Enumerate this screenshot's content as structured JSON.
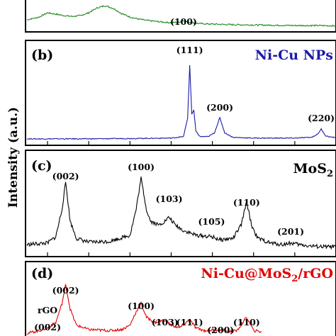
{
  "ylabel": "Intensity (a.u.)",
  "panels": [
    {
      "id": "a",
      "letter": "",
      "name": "",
      "name_color": "#228B22",
      "peak_labels": [
        {
          "text": "(100)",
          "x": 43
        }
      ]
    },
    {
      "id": "b",
      "letter": "(b)",
      "name": "Ni-Cu NPs",
      "name_color": "#1a1aa8",
      "peak_labels": [
        {
          "text": "(111)",
          "x": 44.5
        },
        {
          "text": "(200)",
          "x": 51.8
        },
        {
          "text": "(220)",
          "x": 76.4
        }
      ]
    },
    {
      "id": "c",
      "letter": "(c)",
      "name": "MoS",
      "name_sub": "2",
      "name_color": "#000000",
      "peak_labels": [
        {
          "text": "(002)",
          "x": 14.4
        },
        {
          "text": "(100)",
          "x": 32.7
        },
        {
          "text": "(103)",
          "x": 39.5
        },
        {
          "text": "(105)",
          "x": 49.8
        },
        {
          "text": "(110)",
          "x": 58.3
        },
        {
          "text": "(201)",
          "x": 69
        }
      ]
    },
    {
      "id": "d",
      "letter": "(d)",
      "name": "Ni-Cu@MoS",
      "name_sub": "2",
      "name_tail": "/rGO",
      "name_color": "#e00000",
      "peak_labels": [
        {
          "text": "(002)",
          "x": 14.4
        },
        {
          "text": "rGO",
          "x": 10
        },
        {
          "text": "(002)",
          "x": 10
        },
        {
          "text": "(100)",
          "x": 32.7
        },
        {
          "text": "(103)",
          "x": 38.5
        },
        {
          "text": "(111)",
          "x": 44.5
        },
        {
          "text": "(200)",
          "x": 52
        },
        {
          "text": "(110)",
          "x": 58.3
        }
      ]
    }
  ],
  "chart_data": {
    "type": "line",
    "ylabel": "Intensity (a.u.)",
    "xlim": [
      5,
      80
    ],
    "series": [
      {
        "panel": "a",
        "color": "#228B22",
        "x": [
          5,
          8,
          10,
          12,
          14,
          16,
          18,
          20,
          22,
          24,
          26,
          28,
          30,
          32,
          34,
          36,
          38,
          40,
          42,
          43,
          44,
          46,
          48,
          50,
          55,
          60,
          65,
          70,
          75,
          80
        ],
        "y": [
          0.3,
          0.4,
          0.55,
          0.5,
          0.45,
          0.42,
          0.45,
          0.55,
          0.72,
          0.8,
          0.7,
          0.52,
          0.4,
          0.33,
          0.28,
          0.25,
          0.22,
          0.2,
          0.22,
          0.28,
          0.22,
          0.18,
          0.16,
          0.15,
          0.13,
          0.12,
          0.11,
          0.1,
          0.1,
          0.09
        ]
      },
      {
        "panel": "b",
        "color": "#1a1aa8",
        "x": [
          5,
          20,
          40,
          43,
          44,
          44.5,
          45,
          45.5,
          46,
          47,
          49,
          50.5,
          51.8,
          53,
          55,
          60,
          70,
          74,
          75.5,
          76.4,
          77.5,
          79,
          80
        ],
        "y": [
          0.02,
          0.02,
          0.03,
          0.05,
          0.3,
          1.0,
          0.35,
          0.4,
          0.12,
          0.05,
          0.05,
          0.1,
          0.3,
          0.1,
          0.04,
          0.03,
          0.03,
          0.04,
          0.08,
          0.15,
          0.06,
          0.04,
          0.04
        ]
      },
      {
        "panel": "c",
        "color": "#000000",
        "x": [
          5,
          10,
          12,
          13.5,
          14.4,
          15.5,
          17,
          20,
          25,
          30,
          31.5,
          32.7,
          34,
          35,
          37,
          38.5,
          39.5,
          41,
          43,
          46,
          49.8,
          52,
          55,
          57,
          58.3,
          59.5,
          61,
          64,
          67,
          69,
          71,
          74,
          77,
          80
        ],
        "y": [
          0.1,
          0.12,
          0.2,
          0.55,
          0.9,
          0.4,
          0.18,
          0.13,
          0.14,
          0.22,
          0.55,
          0.95,
          0.55,
          0.4,
          0.35,
          0.4,
          0.45,
          0.35,
          0.28,
          0.22,
          0.2,
          0.16,
          0.18,
          0.35,
          0.65,
          0.35,
          0.18,
          0.12,
          0.1,
          0.12,
          0.1,
          0.08,
          0.07,
          0.07
        ]
      },
      {
        "panel": "d",
        "color": "#e00000",
        "x": [
          5,
          8,
          10,
          12,
          13.5,
          14.4,
          15.5,
          17,
          20,
          25,
          28,
          30,
          31.5,
          32.7,
          34,
          36,
          38.5,
          40,
          42,
          44.5,
          46,
          48,
          52,
          54,
          56,
          58.3,
          60,
          62
        ],
        "y": [
          0.05,
          0.1,
          0.15,
          0.25,
          0.6,
          0.95,
          0.5,
          0.2,
          0.12,
          0.1,
          0.12,
          0.2,
          0.45,
          0.6,
          0.35,
          0.25,
          0.3,
          0.2,
          0.15,
          0.3,
          0.15,
          0.1,
          0.12,
          0.08,
          0.1,
          0.35,
          0.1,
          0.08
        ]
      }
    ]
  }
}
